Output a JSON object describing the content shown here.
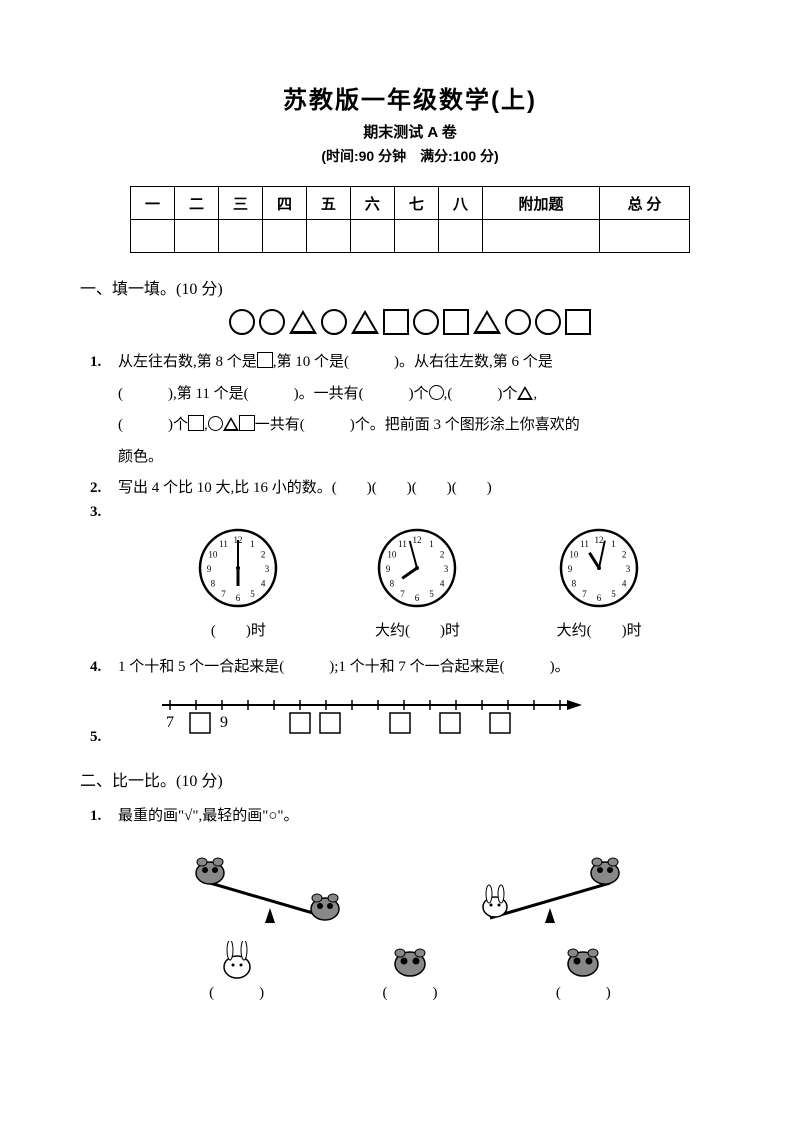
{
  "header": {
    "title": "苏教版一年级数学(上)",
    "subtitle": "期末测试 A 卷",
    "info": "(时间:90 分钟　满分:100 分)"
  },
  "score_table": {
    "headers": [
      "一",
      "二",
      "三",
      "四",
      "五",
      "六",
      "七",
      "八",
      "附加题",
      "总 分"
    ]
  },
  "section1": {
    "heading": "一、填一填。(10 分)",
    "shapes": [
      "circle",
      "circle",
      "triangle",
      "circle",
      "triangle",
      "square",
      "circle",
      "square",
      "triangle",
      "circle",
      "circle",
      "square"
    ],
    "q1_num": "1.",
    "q1_a": "从左往右数,第 8 个是",
    "q1_b": ",第 10 个是(　　　)。从右往左数,第 6 个是",
    "q1_c": "(　　　),第 11 个是(　　　)。一共有(　　　)个",
    "q1_d": ",(　　　)个",
    "q1_e": ",",
    "q1_f": "(　　　)个",
    "q1_g": ",",
    "q1_h": "一共有(　　　)个。把前面 3 个图形涂上你喜欢的",
    "q1_i": "颜色。",
    "q2_num": "2.",
    "q2": "写出 4 个比 10 大,比 16 小的数。(　　)(　　)(　　)(　　)",
    "q3_num": "3.",
    "clocks": [
      {
        "hour_angle": 180,
        "min_angle": 0,
        "label_pre": "(　　)",
        "label_suf": "时"
      },
      {
        "hour_angle": 235,
        "min_angle": 345,
        "label_pre": "大约(　　)",
        "label_suf": "时"
      },
      {
        "hour_angle": 328,
        "min_angle": 12,
        "label_pre": "大约(　　)",
        "label_suf": "时"
      }
    ],
    "q4_num": "4.",
    "q4": "1 个十和 5 个一合起来是(　　　);1 个十和 7 个一合起来是(　　　)。",
    "q5_num": "5.",
    "numline": {
      "start_label": "7",
      "mid_label": "9"
    }
  },
  "section2": {
    "heading": "二、比一比。(10 分)",
    "q1_num": "1.",
    "q1": "最重的画\"√\",最轻的画\"○\"。",
    "answers": [
      "(　　　)",
      "(　　　)",
      "(　　　)"
    ]
  }
}
